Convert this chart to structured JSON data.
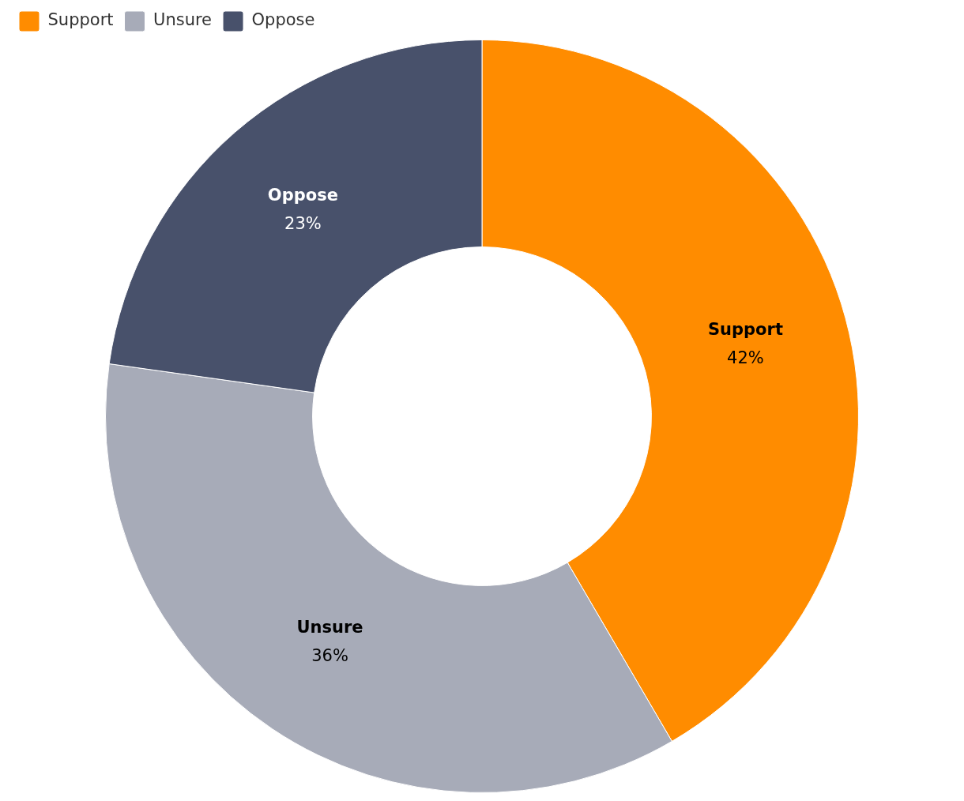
{
  "chart_data": {
    "type": "donut",
    "categories": [
      "Support",
      "Unsure",
      "Oppose"
    ],
    "values": [
      42,
      36,
      23
    ],
    "colors": [
      "#ff8c00",
      "#a7abb8",
      "#48516b"
    ],
    "value_labels": [
      "42%",
      "36%",
      "23%"
    ],
    "legend": "top left"
  }
}
